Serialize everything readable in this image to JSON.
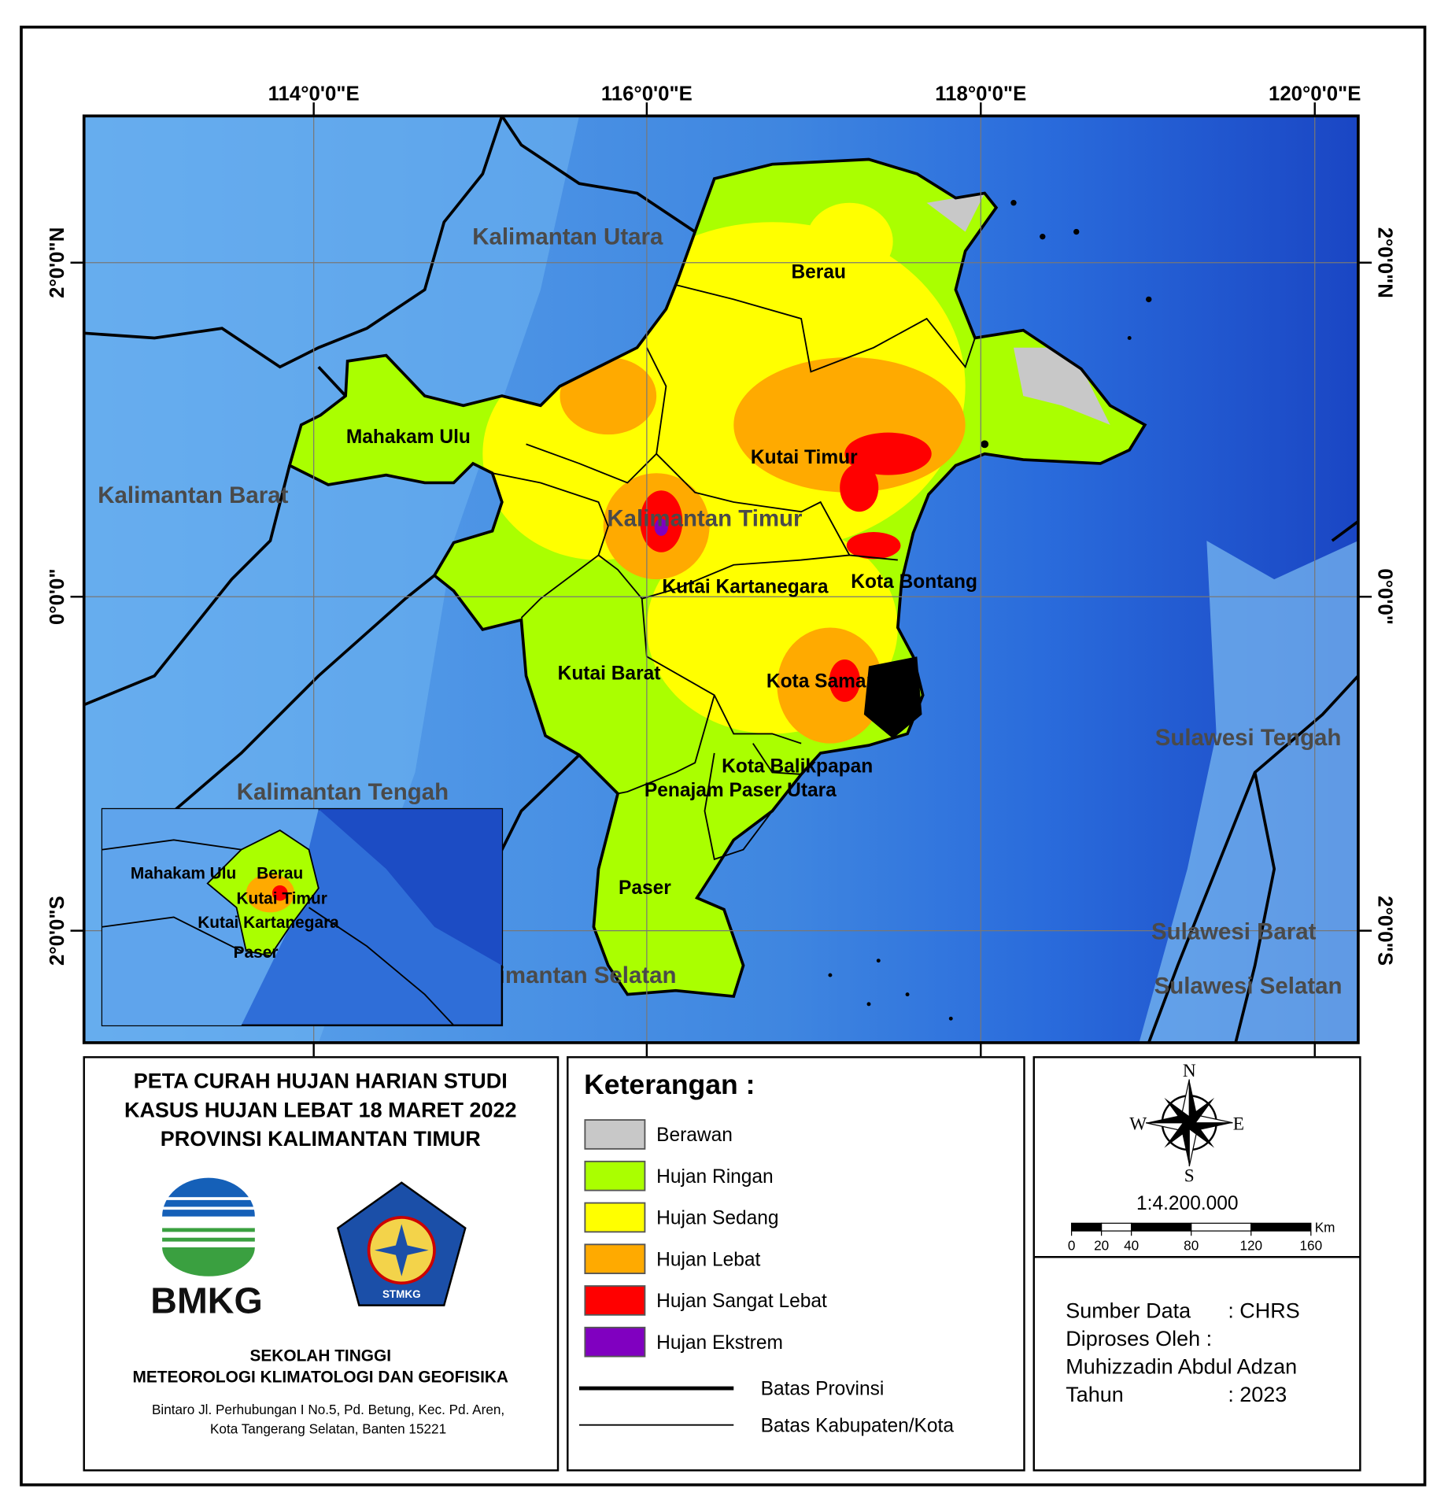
{
  "map": {
    "longitude_labels": [
      "114°0'0\"E",
      "116°0'0\"E",
      "118°0'0\"E",
      "120°0'0\"E"
    ],
    "latitude_labels": [
      "2°0'0\"N",
      "0°0'0\"",
      "2°0'0\"S"
    ],
    "region_labels": [
      "Kalimantan Utara",
      "Berau",
      "Mahakam Ulu",
      "Kalimantan Barat",
      "Kutai Timur",
      "Kalimantan Timur",
      "Kota Bontang",
      "Kutai Kartanegara",
      "Kutai Barat",
      "Kota Samarinda",
      "Sulawesi Tengah",
      "Kota Balikpapan",
      "Penajam Paser Utara",
      "Kalimantan Tengah",
      "Paser",
      "Sulawesi Barat",
      "Kalimantan Selatan",
      "Sulawesi Selatan"
    ],
    "inset_labels": [
      "Mahakam Ulu",
      "Berau",
      "Kutai Timur",
      "Kutai Kartanegara",
      "Paser"
    ]
  },
  "title_block": {
    "title_lines": [
      "PETA CURAH HUJAN HARIAN STUDI",
      "KASUS HUJAN LEBAT 18 MARET 2022",
      "PROVINSI KALIMANTAN TIMUR"
    ],
    "logo_bmkg": "BMKG",
    "logo_stmkg": "STMKG",
    "institution_lines": [
      "SEKOLAH TINGGI",
      "METEOROLOGI KLIMATOLOGI DAN GEOFISIKA"
    ],
    "address_lines": [
      "Bintaro Jl. Perhubungan I No.5, Pd. Betung, Kec. Pd. Aren,",
      "Kota Tangerang Selatan, Banten 15221"
    ]
  },
  "legend": {
    "title": "Keterangan :",
    "items": [
      {
        "label": "Berawan",
        "color": "#c8c8c8"
      },
      {
        "label": "Hujan Ringan",
        "color": "#aaff00"
      },
      {
        "label": "Hujan Sedang",
        "color": "#ffff00"
      },
      {
        "label": "Hujan Lebat",
        "color": "#ffaa00"
      },
      {
        "label": "Hujan Sangat Lebat",
        "color": "#ff0000"
      },
      {
        "label": "Hujan Ekstrem",
        "color": "#8000c0"
      }
    ],
    "lines": [
      "Batas Provinsi",
      "Batas Kabupaten/Kota"
    ]
  },
  "compass": {
    "n": "N",
    "s": "S",
    "e": "E",
    "w": "W"
  },
  "scale": {
    "ratio": "1:4.200.000",
    "unit": "Km",
    "ticks": [
      0,
      20,
      40,
      80,
      120,
      160
    ]
  },
  "source": {
    "rows": [
      [
        "Sumber Data",
        ": CHRS"
      ],
      [
        "Diproses Oleh :"
      ],
      [
        "Muhizzadin Abdul Adzan"
      ],
      [
        "Tahun",
        ": 2023"
      ]
    ]
  }
}
